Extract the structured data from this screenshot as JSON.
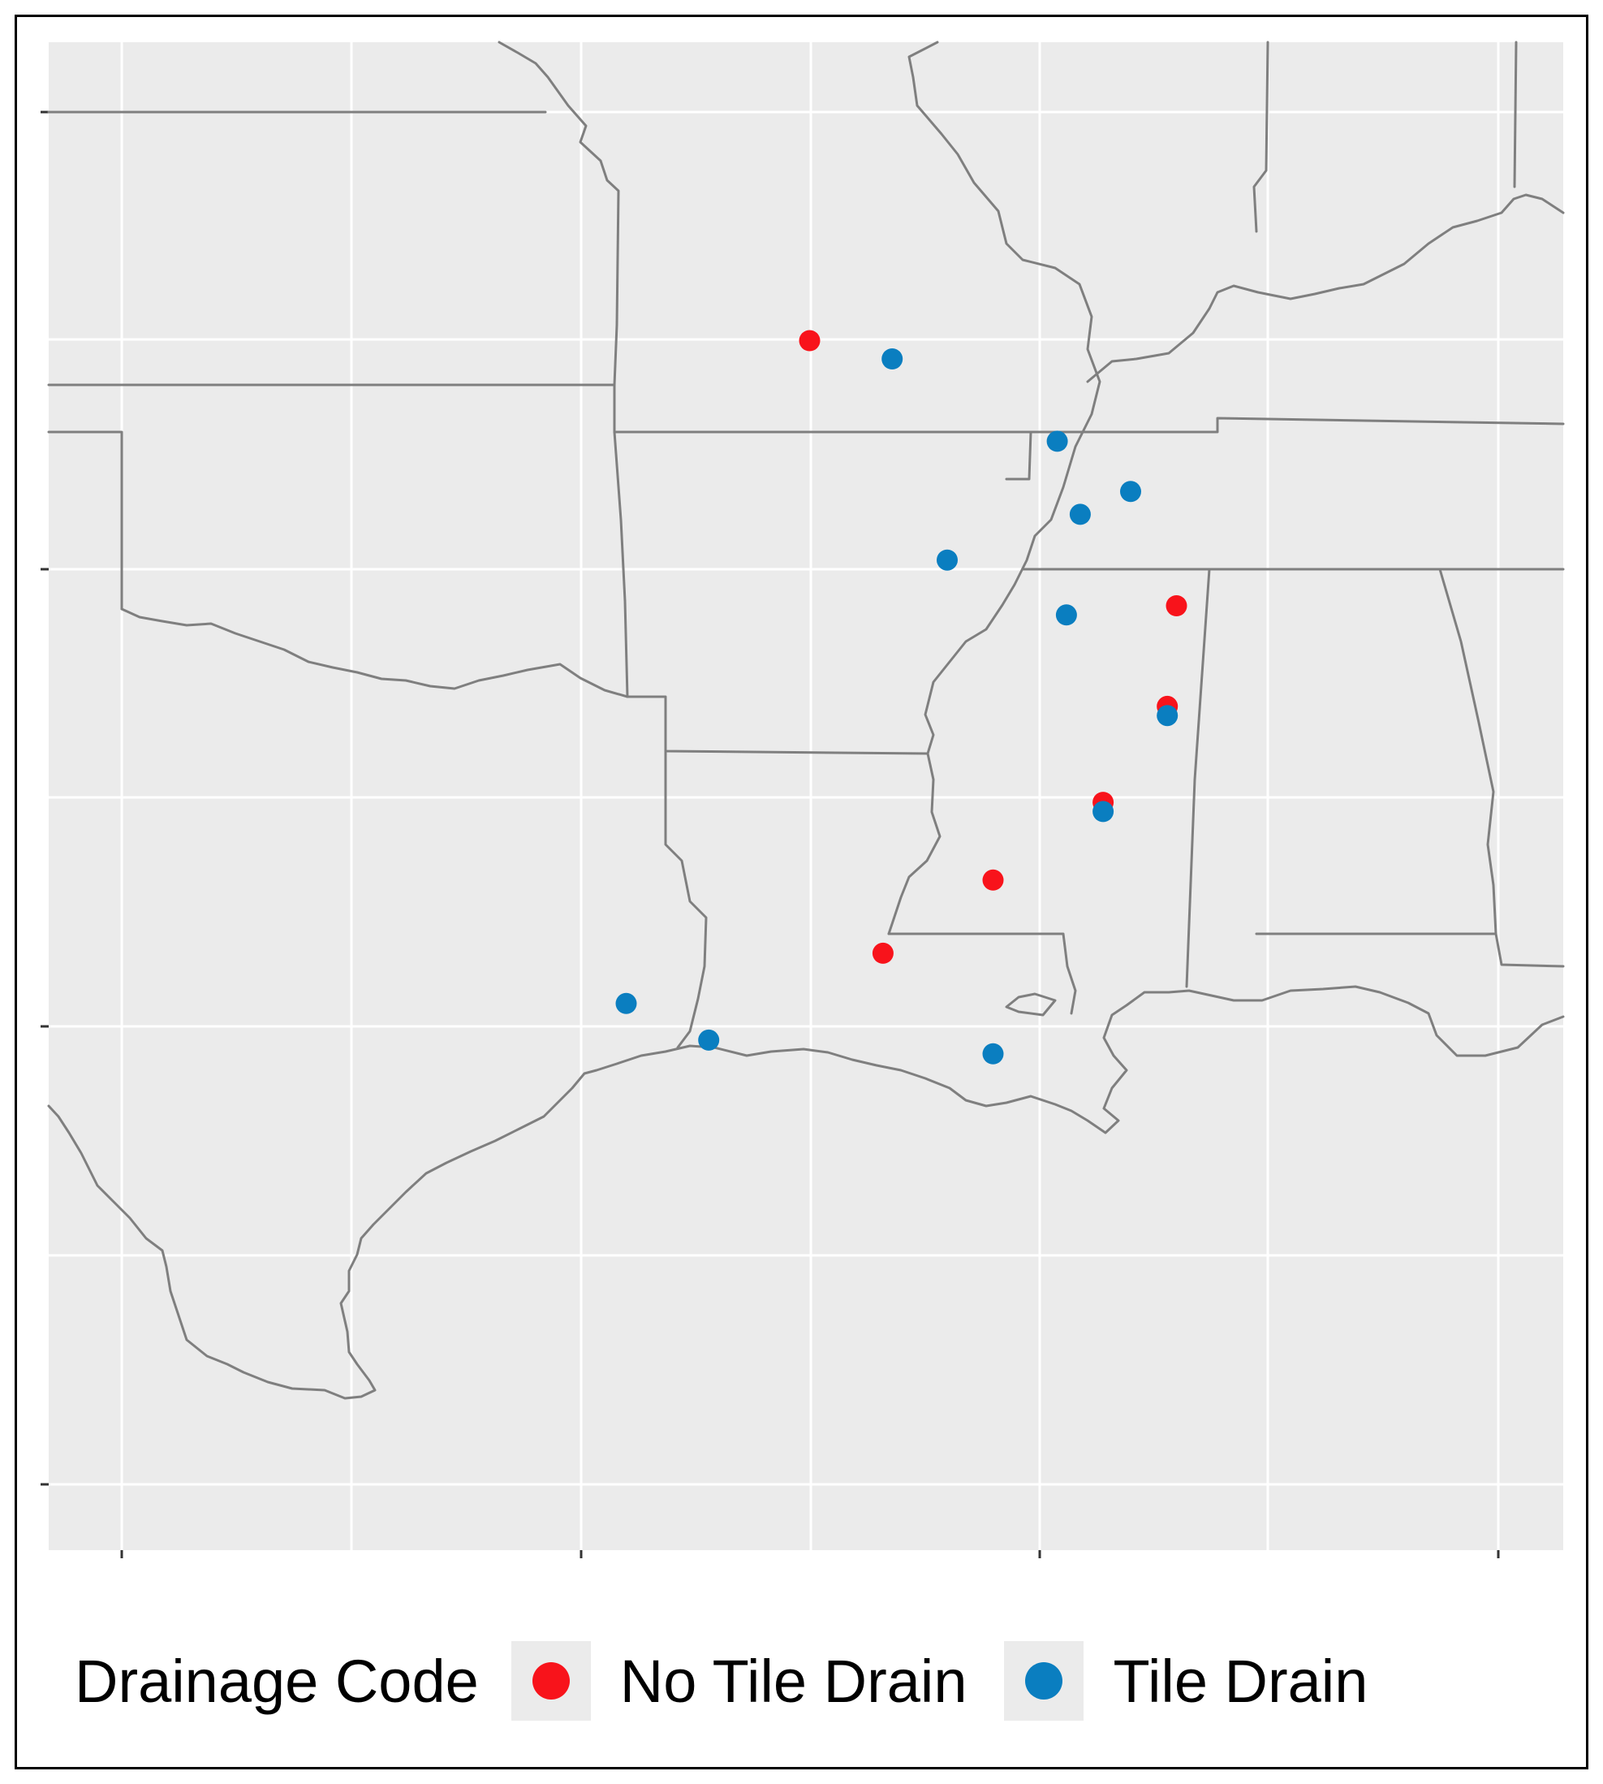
{
  "legend": {
    "title": "Drainage Code",
    "entries": [
      {
        "key": "no_tile",
        "label": "No Tile Drain",
        "color": "#f8131b"
      },
      {
        "key": "tile",
        "label": "Tile Drain",
        "color": "#0a7ec0"
      }
    ]
  },
  "colors": {
    "panel_background": "#ebebeb",
    "grid": "#ffffff",
    "state_border": "#7f7f7f",
    "frame": "#000000"
  },
  "map": {
    "projection": "longitude/latitude, south-central United States",
    "sites": [
      {
        "lon": -92.5,
        "lat": 37.5,
        "drainage": "no_tile"
      },
      {
        "lon": -91.6,
        "lat": 37.3,
        "drainage": "tile"
      },
      {
        "lon": -89.8,
        "lat": 36.4,
        "drainage": "tile"
      },
      {
        "lon": -89.0,
        "lat": 35.85,
        "drainage": "tile"
      },
      {
        "lon": -89.55,
        "lat": 35.6,
        "drainage": "tile"
      },
      {
        "lon": -91.0,
        "lat": 35.1,
        "drainage": "tile"
      },
      {
        "lon": -88.5,
        "lat": 34.6,
        "drainage": "no_tile"
      },
      {
        "lon": -89.7,
        "lat": 34.5,
        "drainage": "tile"
      },
      {
        "lon": -88.6,
        "lat": 33.5,
        "drainage": "no_tile"
      },
      {
        "lon": -88.6,
        "lat": 33.4,
        "drainage": "tile"
      },
      {
        "lon": -89.3,
        "lat": 32.45,
        "drainage": "no_tile"
      },
      {
        "lon": -89.3,
        "lat": 32.35,
        "drainage": "tile"
      },
      {
        "lon": -90.5,
        "lat": 31.6,
        "drainage": "no_tile"
      },
      {
        "lon": -91.7,
        "lat": 30.8,
        "drainage": "no_tile"
      },
      {
        "lon": -94.5,
        "lat": 30.25,
        "drainage": "tile"
      },
      {
        "lon": -93.6,
        "lat": 29.85,
        "drainage": "tile"
      },
      {
        "lon": -90.5,
        "lat": 29.7,
        "drainage": "tile"
      }
    ]
  }
}
